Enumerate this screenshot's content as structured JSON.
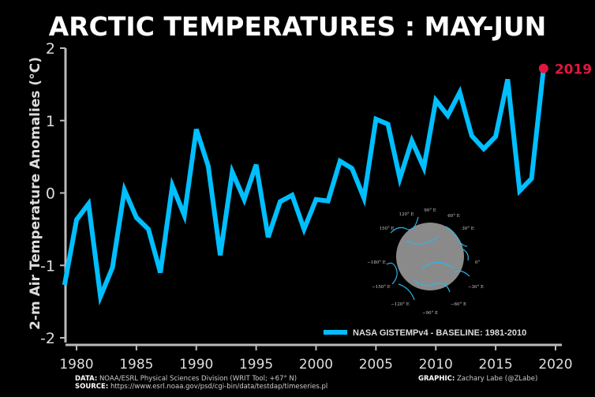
{
  "chart_data": {
    "type": "line",
    "title": "ARCTIC TEMPERATURES : MAY-JUN",
    "xlabel": "",
    "ylabel": "2-m Air Temperature Anomalies (°C)",
    "xlim": [
      1979,
      2020
    ],
    "ylim": [
      -2,
      2
    ],
    "xticks": [
      1980,
      1985,
      1990,
      1995,
      2000,
      2005,
      2010,
      2015,
      2020
    ],
    "yticks": [
      -2,
      -1,
      0,
      1,
      2
    ],
    "grid": false,
    "legend": {
      "label": "NASA GISTEMPv4 - BASELINE: 1981-2010",
      "position": "bottom-right"
    },
    "series": [
      {
        "name": "NASA GISTEMPv4 - BASELINE: 1981-2010",
        "color": "#00bfff",
        "x": [
          1979,
          1980,
          1981,
          1982,
          1983,
          1984,
          1985,
          1986,
          1987,
          1988,
          1989,
          1990,
          1991,
          1992,
          1993,
          1994,
          1995,
          1996,
          1997,
          1998,
          1999,
          2000,
          2001,
          2002,
          2003,
          2004,
          2005,
          2006,
          2007,
          2008,
          2009,
          2010,
          2011,
          2012,
          2013,
          2014,
          2015,
          2016,
          2017,
          2018,
          2019
        ],
        "values": [
          -1.27,
          -0.37,
          -0.15,
          -1.43,
          -1.03,
          0.04,
          -0.34,
          -0.5,
          -1.1,
          0.1,
          -0.31,
          0.88,
          0.37,
          -0.86,
          0.29,
          -0.09,
          0.39,
          -0.61,
          -0.12,
          -0.03,
          -0.5,
          -0.09,
          -0.11,
          0.44,
          0.34,
          -0.07,
          1.02,
          0.95,
          0.2,
          0.72,
          0.35,
          1.28,
          1.07,
          1.39,
          0.79,
          0.61,
          0.78,
          1.57,
          0.03,
          0.2,
          1.72
        ]
      }
    ],
    "annotations": [
      {
        "text": "2019",
        "x": 2019,
        "y": 1.72,
        "color": "#e0173f"
      }
    ],
    "inset_map_labels": [
      "90° E",
      "120° E",
      "60° E",
      "150° E",
      "30° E",
      "−180° E",
      "0°",
      "−150° E",
      "−30° E",
      "−120° E",
      "−60° E",
      "−90° E"
    ]
  },
  "footer": {
    "data_label": "DATA:",
    "data_text": "NOAA/ESRL Physical Sciences Division (WRIT Tool; +67° N)",
    "source_label": "SOURCE:",
    "source_text": "https://www.esrl.noaa.gov/psd/cgi-bin/data/testdap/timeseries.pl",
    "graphic_label": "GRAPHIC:",
    "graphic_text": "Zachary Labe (@ZLabe)"
  }
}
